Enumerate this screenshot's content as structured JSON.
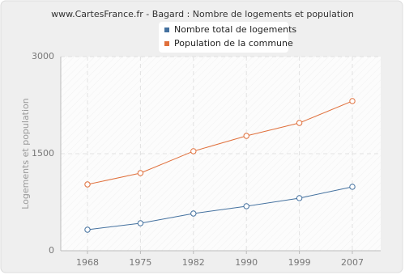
{
  "chart_data": {
    "type": "line",
    "title": "www.CartesFrance.fr - Bagard : Nombre de logements et population",
    "y_label": "Logements et population",
    "categories": [
      "1968",
      "1975",
      "1982",
      "1990",
      "1999",
      "2007"
    ],
    "series": [
      {
        "name": "Nombre total de logements",
        "color": "#44719f",
        "values": [
          325,
          425,
          575,
          688,
          813,
          988
        ]
      },
      {
        "name": "Population de la commune",
        "color": "#e0703c",
        "values": [
          1025,
          1200,
          1538,
          1775,
          1975,
          2313
        ]
      }
    ],
    "ylim": [
      0,
      3000
    ],
    "yticks": [
      0,
      1500,
      3000
    ],
    "grid": true
  }
}
